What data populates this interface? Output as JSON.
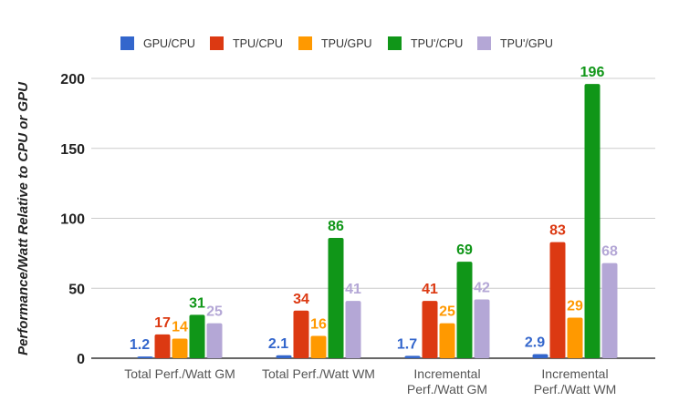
{
  "chart_data": {
    "type": "bar",
    "title": "",
    "xlabel": "",
    "ylabel": "Performance/Watt Relative to CPU or GPU",
    "ylim": [
      0,
      200
    ],
    "yticks": [
      "0",
      "50",
      "100",
      "150",
      "200"
    ],
    "grid": true,
    "legend_position": "top",
    "categories": [
      [
        "Total Perf./Watt GM"
      ],
      [
        "Total Perf./Watt WM"
      ],
      [
        "Incremental",
        "Perf./Watt GM"
      ],
      [
        "Incremental",
        "Perf./Watt WM"
      ]
    ],
    "series": [
      {
        "name": "GPU/CPU",
        "color": "#3366cc",
        "values": [
          1.2,
          2.1,
          1.7,
          2.9
        ],
        "labels": [
          "1.2",
          "2.1",
          "1.7",
          "2.9"
        ]
      },
      {
        "name": "TPU/CPU",
        "color": "#dc3912",
        "values": [
          17,
          34,
          41,
          83
        ],
        "labels": [
          "17",
          "34",
          "41",
          "83"
        ]
      },
      {
        "name": "TPU/GPU",
        "color": "#ff9900",
        "values": [
          14,
          16,
          25,
          29
        ],
        "labels": [
          "14",
          "16",
          "25",
          "29"
        ]
      },
      {
        "name": "TPU'/CPU",
        "color": "#109618",
        "values": [
          31,
          86,
          69,
          196
        ],
        "labels": [
          "31",
          "86",
          "69",
          "196"
        ]
      },
      {
        "name": "TPU'/GPU",
        "color": "#b4a7d6",
        "values": [
          25,
          41,
          42,
          68
        ],
        "labels": [
          "25",
          "41",
          "42",
          "68"
        ]
      }
    ]
  }
}
